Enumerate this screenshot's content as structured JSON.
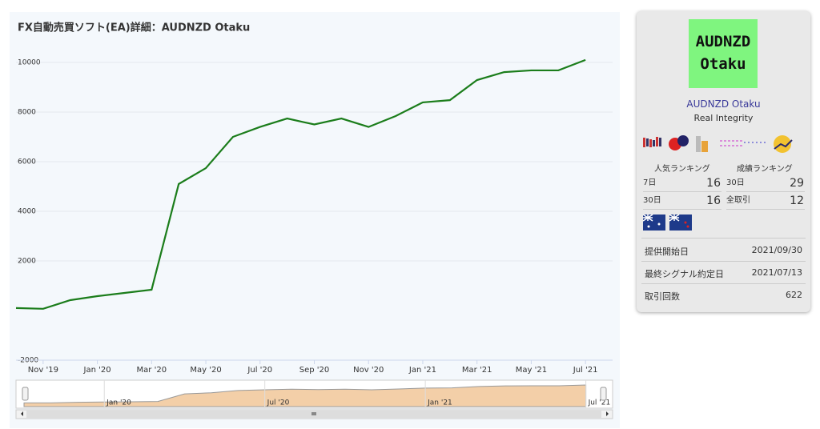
{
  "chart_data": {
    "type": "line",
    "title": "FX自動売買ソフト(EA)詳細：AUDNZD Otaku",
    "x": [
      "2019-10",
      "2019-11",
      "2019-12",
      "2020-01",
      "2020-02",
      "2020-03",
      "2020-04",
      "2020-05",
      "2020-06",
      "2020-07",
      "2020-08",
      "2020-09",
      "2020-10",
      "2020-11",
      "2020-12",
      "2021-01",
      "2021-02",
      "2021-03",
      "2021-04",
      "2021-05",
      "2021-06",
      "2021-07"
    ],
    "series": [
      {
        "color": "#1b7d1b",
        "values": [
          100,
          70,
          420,
          580,
          710,
          840,
          5100,
          5740,
          7000,
          7400,
          7740,
          7500,
          7740,
          7400,
          7840,
          8390,
          8480,
          9290,
          9610,
          9680,
          9680,
          10100
        ]
      }
    ],
    "xlim": [
      "2019-10",
      "2021-08"
    ],
    "xticks": [
      {
        "value": "2019-11",
        "label": "Nov '19"
      },
      {
        "value": "2020-01",
        "label": "Jan '20"
      },
      {
        "value": "2020-03",
        "label": "Mar '20"
      },
      {
        "value": "2020-05",
        "label": "May '20"
      },
      {
        "value": "2020-07",
        "label": "Jul '20"
      },
      {
        "value": "2020-09",
        "label": "Sep '20"
      },
      {
        "value": "2020-11",
        "label": "Nov '20"
      },
      {
        "value": "2021-01",
        "label": "Jan '21"
      },
      {
        "value": "2021-03",
        "label": "Mar '21"
      },
      {
        "value": "2021-05",
        "label": "May '21"
      },
      {
        "value": "2021-07",
        "label": "Jul '21"
      }
    ],
    "ylim": [
      -2000,
      11000
    ],
    "yticks": [
      -2000,
      2000,
      4000,
      6000,
      8000,
      10000
    ],
    "grid": true,
    "navigator_ticks": [
      {
        "value": "2020-01",
        "label": "Jan '20"
      },
      {
        "value": "2020-07",
        "label": "Jul '20"
      },
      {
        "value": "2021-01",
        "label": "Jan '21"
      },
      {
        "value": "2021-07",
        "label": "Jul '21"
      }
    ]
  },
  "sidebar": {
    "logo": [
      "AUDNZD",
      "Otaku"
    ],
    "name": "AUDNZD Otaku",
    "developer": "Real Integrity",
    "ranking_headers": [
      "人気ランキング",
      "成績ランキング"
    ],
    "rankings": [
      {
        "label": "7日",
        "value": "16"
      },
      {
        "label": "30日",
        "value": "29"
      },
      {
        "label": "30日",
        "value": "16"
      },
      {
        "label": "全取引",
        "value": "12"
      }
    ],
    "details": [
      {
        "label": "提供開始日",
        "value": "2021/09/30"
      },
      {
        "label": "最終シグナル約定日",
        "value": "2021/07/13"
      },
      {
        "label": "取引回数",
        "value": "622"
      }
    ]
  }
}
